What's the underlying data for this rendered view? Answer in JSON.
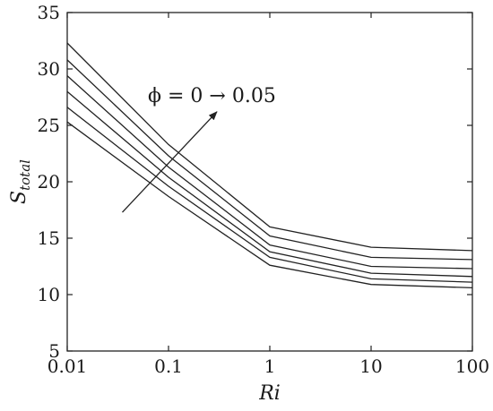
{
  "chart_data": {
    "type": "line",
    "xscale": "log",
    "x": [
      0.01,
      0.1,
      1,
      10,
      100
    ],
    "x_tick_labels": [
      "0.01",
      "0.1",
      "1",
      "10",
      "100"
    ],
    "xlim": [
      0.01,
      100
    ],
    "ylim": [
      5,
      35
    ],
    "y_ticks": [
      5,
      10,
      15,
      20,
      25,
      30,
      35
    ],
    "y_tick_labels": [
      "5",
      "10",
      "15",
      "20",
      "25",
      "30",
      "35"
    ],
    "xlabel": "Ri",
    "ylabel_main": "S",
    "ylabel_sub": "total",
    "grid": false,
    "series": [
      {
        "values": [
          25.3,
          18.7,
          12.6,
          10.9,
          10.6
        ]
      },
      {
        "values": [
          26.6,
          19.6,
          13.3,
          11.4,
          11.1
        ]
      },
      {
        "values": [
          28.0,
          20.4,
          13.8,
          11.9,
          11.6
        ]
      },
      {
        "values": [
          29.4,
          21.3,
          14.4,
          12.5,
          12.3
        ]
      },
      {
        "values": [
          30.8,
          22.3,
          15.2,
          13.3,
          13.1
        ]
      },
      {
        "values": [
          32.3,
          23.3,
          16.0,
          14.2,
          13.9
        ]
      }
    ],
    "annotation": {
      "text": "ϕ = 0 → 0.05",
      "arrow_from": {
        "x": 0.035,
        "y": 17.3
      },
      "arrow_to": {
        "x": 0.3,
        "y": 26.2
      }
    }
  }
}
